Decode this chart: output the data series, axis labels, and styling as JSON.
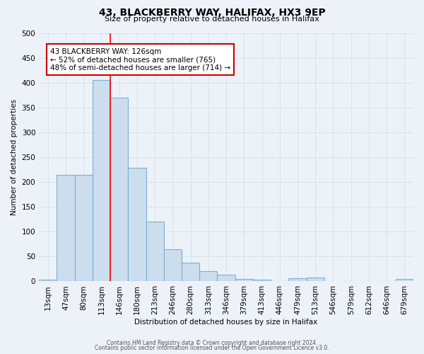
{
  "title": "43, BLACKBERRY WAY, HALIFAX, HX3 9EP",
  "subtitle": "Size of property relative to detached houses in Halifax",
  "xlabel": "Distribution of detached houses by size in Halifax",
  "ylabel": "Number of detached properties",
  "bar_color": "#ccdded",
  "bar_edge_color": "#7ab0d4",
  "background_color": "#edf2f9",
  "grid_color": "#d8e4f0",
  "tick_labels": [
    "13sqm",
    "47sqm",
    "80sqm",
    "113sqm",
    "146sqm",
    "180sqm",
    "213sqm",
    "246sqm",
    "280sqm",
    "313sqm",
    "346sqm",
    "379sqm",
    "413sqm",
    "446sqm",
    "479sqm",
    "513sqm",
    "546sqm",
    "579sqm",
    "612sqm",
    "646sqm",
    "679sqm"
  ],
  "bar_heights": [
    3,
    215,
    215,
    405,
    370,
    228,
    120,
    65,
    38,
    20,
    13,
    5,
    3,
    0,
    7,
    8,
    0,
    0,
    0,
    0,
    5
  ],
  "red_line_x": 4.0,
  "ylim": [
    0,
    500
  ],
  "yticks": [
    0,
    50,
    100,
    150,
    200,
    250,
    300,
    350,
    400,
    450,
    500
  ],
  "annotation_title": "43 BLACKBERRY WAY: 126sqm",
  "annotation_line1": "← 52% of detached houses are smaller (765)",
  "annotation_line2": "48% of semi-detached houses are larger (714) →",
  "annotation_box_facecolor": "#ffffff",
  "annotation_box_edgecolor": "#cc0000",
  "footer1": "Contains HM Land Registry data © Crown copyright and database right 2024.",
  "footer2": "Contains public sector information licensed under the Open Government Licence v3.0."
}
